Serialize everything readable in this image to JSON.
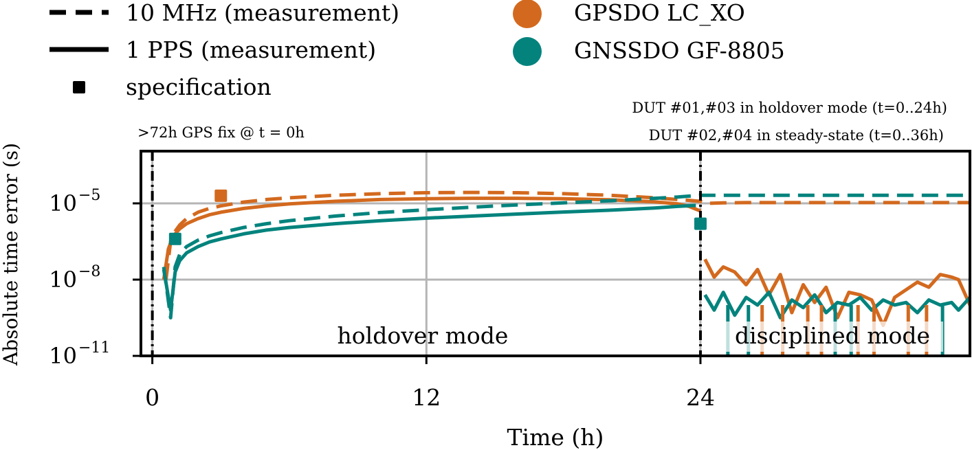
{
  "chart_data": {
    "type": "line",
    "title": "",
    "xlabel": "Time (h)",
    "ylabel": "Absolute time error (s)",
    "yscale": "log",
    "xlim": [
      -0.5,
      35.8
    ],
    "ylim_log10": [
      -11,
      -3
    ],
    "x_ticks": [
      0,
      12,
      24
    ],
    "x_tick_labels": [
      "0",
      "12",
      "24"
    ],
    "y_ticks_log10": [
      -11,
      -8,
      -5
    ],
    "y_tick_labels": [
      {
        "base": "10",
        "exp": "−11"
      },
      {
        "base": "10",
        "exp": "−8"
      },
      {
        "base": "10",
        "exp": "−5"
      }
    ],
    "grid": true,
    "colors": {
      "gpsdo": "#d3691e",
      "gnssdo": "#04837d",
      "grid": "#b5b5b5",
      "axis": "#000000"
    },
    "legend": {
      "linestyles": [
        {
          "style": "dashed",
          "label": "10 MHz (measurement)"
        },
        {
          "style": "solid",
          "label": "1 PPS (measurement)"
        },
        {
          "style": "square-marker",
          "label": "specification"
        }
      ],
      "devices": [
        {
          "color": "#d3691e",
          "label": "GPSDO LC_XO"
        },
        {
          "color": "#04837d",
          "label": "GNSSDO GF-8805"
        }
      ]
    },
    "annotations": {
      "gps_fix": ">72h GPS fix @ t = 0h",
      "dut_holdover": "DUT #01,#03 in holdover mode (t=0..24h)",
      "dut_steady": "DUT #02,#04 in steady-state (t=0..36h)",
      "holdover_region": "holdover mode",
      "disciplined_region": "disciplined mode"
    },
    "event_lines_x": [
      0,
      24
    ],
    "series": [
      {
        "name": "GPSDO LC_XO 10 MHz (measurement)",
        "color": "#d3691e",
        "style": "dashed",
        "x": [
          0.6,
          0.8,
          1.0,
          1.2,
          1.5,
          2,
          2.5,
          3,
          4,
          5,
          6,
          8,
          10,
          12,
          14,
          16,
          18,
          20,
          22,
          23,
          23.5,
          24,
          24.3,
          25,
          26,
          28,
          30,
          32,
          34,
          35.8
        ],
        "log10_y": [
          -8.0,
          -6.5,
          -6.1,
          -5.85,
          -5.6,
          -5.35,
          -5.2,
          -5.1,
          -4.95,
          -4.85,
          -4.78,
          -4.68,
          -4.62,
          -4.58,
          -4.57,
          -4.58,
          -4.62,
          -4.68,
          -4.78,
          -4.85,
          -4.88,
          -4.92,
          -5.0,
          -4.98,
          -4.97,
          -4.97,
          -4.97,
          -4.97,
          -4.97,
          -4.97
        ]
      },
      {
        "name": "GPSDO LC_XO 1 PPS (measurement)",
        "color": "#d3691e",
        "style": "solid",
        "x": [
          0.5,
          0.7,
          0.9,
          1.2,
          1.5,
          2,
          2.5,
          3,
          4,
          5,
          6,
          8,
          10,
          12,
          14,
          16,
          18,
          20,
          22,
          23,
          23.5,
          24
        ],
        "log10_y": [
          -8.0,
          -6.8,
          -6.3,
          -6.0,
          -5.8,
          -5.6,
          -5.45,
          -5.35,
          -5.2,
          -5.1,
          -5.02,
          -4.92,
          -4.85,
          -4.82,
          -4.8,
          -4.8,
          -4.82,
          -4.86,
          -4.94,
          -5.02,
          -5.12,
          -5.3
        ]
      },
      {
        "name": "GNSSDO GF-8805 10 MHz (measurement)",
        "color": "#04837d",
        "style": "dashed",
        "x": [
          0.5,
          0.8,
          1.0,
          1.2,
          1.5,
          2,
          2.5,
          3,
          4,
          5,
          6,
          8,
          10,
          12,
          14,
          16,
          18,
          20,
          22,
          23,
          24,
          25,
          26,
          28,
          30,
          32,
          34,
          35.8
        ],
        "log10_y": [
          -7.5,
          -9.5,
          -7.5,
          -7.0,
          -6.7,
          -6.45,
          -6.28,
          -6.15,
          -5.95,
          -5.8,
          -5.68,
          -5.5,
          -5.36,
          -5.25,
          -5.15,
          -5.06,
          -4.98,
          -4.9,
          -4.8,
          -4.75,
          -4.68,
          -4.68,
          -4.68,
          -4.68,
          -4.68,
          -4.68,
          -4.68,
          -4.68
        ]
      },
      {
        "name": "GNSSDO GF-8805 1 PPS (measurement)",
        "color": "#04837d",
        "style": "solid",
        "x": [
          0.5,
          0.8,
          1.0,
          1.2,
          1.5,
          2,
          2.5,
          3,
          4,
          5,
          6,
          8,
          10,
          12,
          14,
          16,
          18,
          20,
          22,
          23,
          23.8
        ],
        "log10_y": [
          -7.6,
          -9.2,
          -7.7,
          -7.25,
          -6.95,
          -6.7,
          -6.52,
          -6.4,
          -6.2,
          -6.05,
          -5.95,
          -5.8,
          -5.68,
          -5.58,
          -5.5,
          -5.42,
          -5.34,
          -5.27,
          -5.18,
          -5.12,
          -5.08
        ]
      },
      {
        "name": "GPSDO LC_XO disciplined 1 PPS noise",
        "color": "#d3691e",
        "style": "solid",
        "x": [
          24.2,
          24.6,
          25.0,
          25.5,
          26.0,
          26.5,
          27.0,
          27.5,
          28.0,
          28.5,
          29.0,
          29.5,
          30.0,
          30.5,
          31.0,
          31.5,
          32.0,
          32.5,
          33.0,
          33.5,
          34.0,
          34.5,
          35.0,
          35.3,
          35.8
        ],
        "log10_y": [
          -7.2,
          -7.9,
          -7.5,
          -7.7,
          -8.2,
          -7.6,
          -8.6,
          -7.8,
          -9.3,
          -8.2,
          -8.9,
          -8.3,
          -9.5,
          -8.5,
          -8.6,
          -8.8,
          -9.8,
          -8.7,
          -8.4,
          -8.1,
          -8.3,
          -7.8,
          -7.9,
          -8.0,
          -9.0
        ]
      },
      {
        "name": "GNSSDO GF-8805 disciplined 1 PPS noise",
        "color": "#04837d",
        "style": "solid",
        "x": [
          24.2,
          24.6,
          25.0,
          25.5,
          26.0,
          26.5,
          27.0,
          27.5,
          28.0,
          28.5,
          29.0,
          29.5,
          30.0,
          30.5,
          31.0,
          31.5,
          32.0,
          32.5,
          33.0,
          33.5,
          34.0,
          34.5,
          35.0,
          35.3,
          35.8
        ],
        "log10_y": [
          -8.6,
          -9.2,
          -8.5,
          -9.4,
          -8.7,
          -9.0,
          -8.5,
          -9.5,
          -8.8,
          -9.1,
          -8.6,
          -9.3,
          -8.9,
          -9.0,
          -8.7,
          -9.2,
          -8.8,
          -9.0,
          -8.9,
          -9.3,
          -8.8,
          -9.0,
          -8.9,
          -9.2,
          -8.7
        ]
      },
      {
        "name": "GPSDO LC_XO disciplined 10 MHz dropouts",
        "color": "#d3691e",
        "style": "dropouts",
        "x": [
          26.7,
          27.6,
          28.7,
          29.3,
          30.9,
          31.6,
          33.1,
          33.9
        ],
        "log10_y": [
          -11,
          -11,
          -11,
          -11,
          -11,
          -11,
          -11,
          -11
        ]
      },
      {
        "name": "GNSSDO GF-8805 disciplined dropouts",
        "color": "#04837d",
        "style": "dropouts",
        "x": [
          25.2,
          26.1,
          29.9,
          30.6,
          34.6
        ],
        "log10_y": [
          -11,
          -11,
          -11,
          -11,
          -11
        ]
      }
    ],
    "specification": [
      {
        "device": "GPSDO LC_XO",
        "color": "#d3691e",
        "x": 3.0,
        "log10_y": -4.7
      },
      {
        "device": "GNSSDO GF-8805",
        "color": "#04837d",
        "x": 1.0,
        "log10_y": -6.4
      },
      {
        "device": "GNSSDO GF-8805",
        "color": "#04837d",
        "x": 24.0,
        "log10_y": -5.8
      }
    ]
  }
}
